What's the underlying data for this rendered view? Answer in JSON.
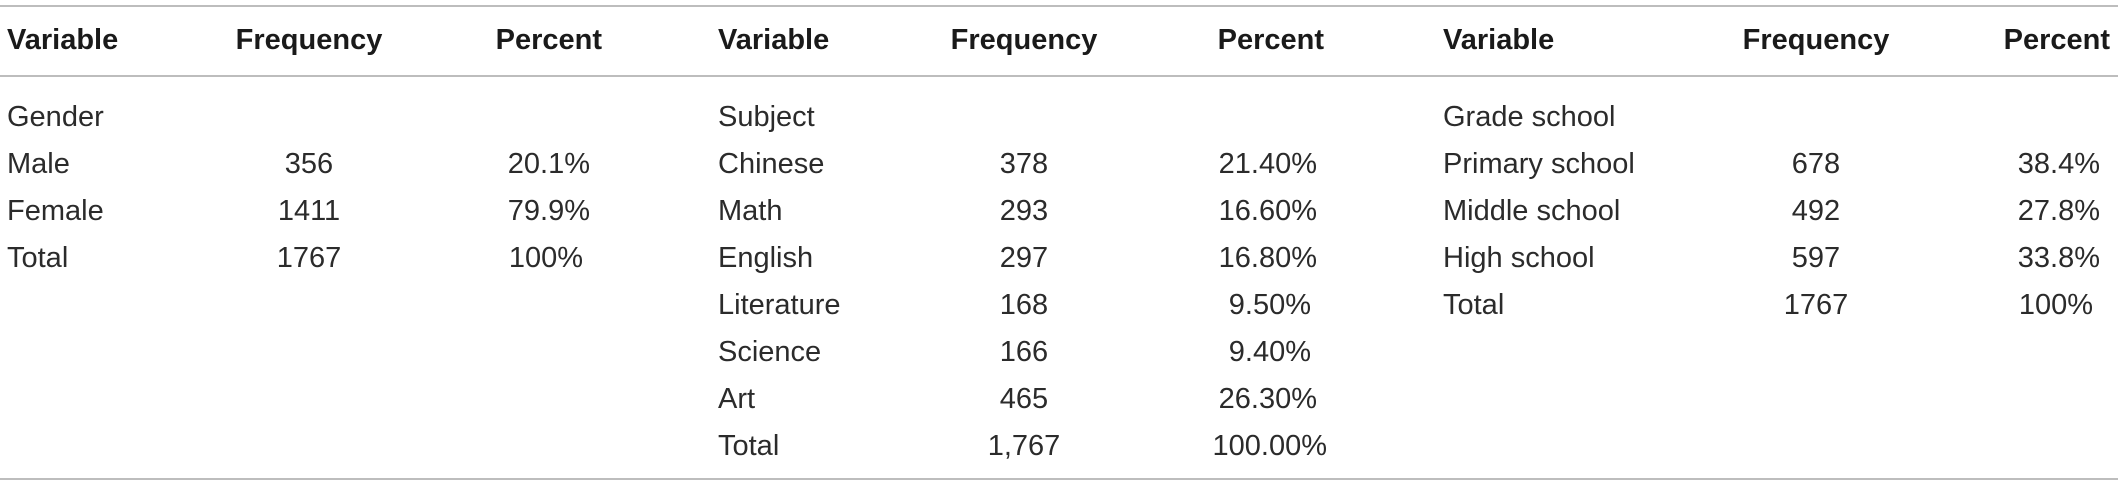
{
  "groups": [
    {
      "headers": [
        "Variable",
        "Frequency",
        "Percent"
      ],
      "category": "Gender",
      "rows": [
        [
          "Male",
          "356",
          "20.1%"
        ],
        [
          "Female",
          "1411",
          "79.9%"
        ],
        [
          "Total",
          "1767",
          "100%"
        ]
      ]
    },
    {
      "headers": [
        "Variable",
        "Frequency",
        "Percent"
      ],
      "category": "Subject",
      "rows": [
        [
          "Chinese",
          "378",
          "21.40%"
        ],
        [
          "Math",
          "293",
          "16.60%"
        ],
        [
          "English",
          "297",
          "16.80%"
        ],
        [
          "Literature",
          "168",
          "9.50%"
        ],
        [
          "Science",
          "166",
          "9.40%"
        ],
        [
          "Art",
          "465",
          "26.30%"
        ],
        [
          "Total",
          "1,767",
          "100.00%"
        ]
      ]
    },
    {
      "headers": [
        "Variable",
        "Frequency",
        "Percent"
      ],
      "category": "Grade school",
      "rows": [
        [
          "Primary school",
          "678",
          "38.4%"
        ],
        [
          "Middle school",
          "492",
          "27.8%"
        ],
        [
          "High school",
          "597",
          "33.8%"
        ],
        [
          "Total",
          "1767",
          "100%"
        ]
      ]
    }
  ]
}
